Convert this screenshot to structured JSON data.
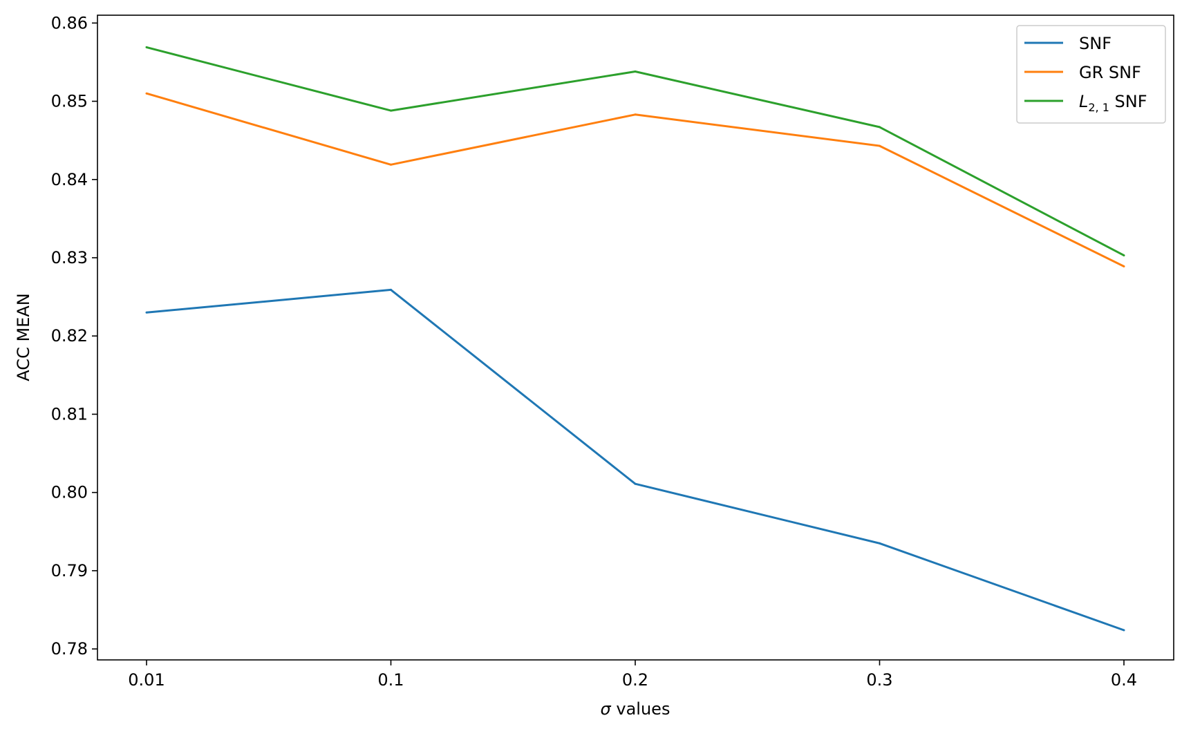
{
  "chart_data": {
    "type": "line",
    "x": [
      "0.01",
      "0.1",
      "0.2",
      "0.3",
      "0.4"
    ],
    "series": [
      {
        "name": "SNF",
        "values": [
          0.823,
          0.8259,
          0.8011,
          0.7935,
          0.7824
        ],
        "color": "#1f77b4"
      },
      {
        "name": "GR SNF",
        "values": [
          0.851,
          0.8419,
          0.8483,
          0.8443,
          0.8289
        ],
        "color": "#ff7f0e"
      },
      {
        "name_main": "L",
        "name_sub": "2, 1",
        "name_rest": " SNF",
        "values": [
          0.8569,
          0.8488,
          0.8538,
          0.8467,
          0.8303
        ],
        "color": "#2ca02c"
      }
    ],
    "xlabel_symbol": "σ",
    "xlabel_rest": " values",
    "ylabel": "ACC MEAN",
    "ylim": [
      0.7786,
      0.861
    ],
    "yticks": [
      "0.78",
      "0.79",
      "0.80",
      "0.81",
      "0.82",
      "0.83",
      "0.84",
      "0.85",
      "0.86"
    ],
    "ytick_values": [
      0.78,
      0.79,
      0.8,
      0.81,
      0.82,
      0.83,
      0.84,
      0.85,
      0.86
    ],
    "grid": false,
    "legend": "top-right"
  }
}
